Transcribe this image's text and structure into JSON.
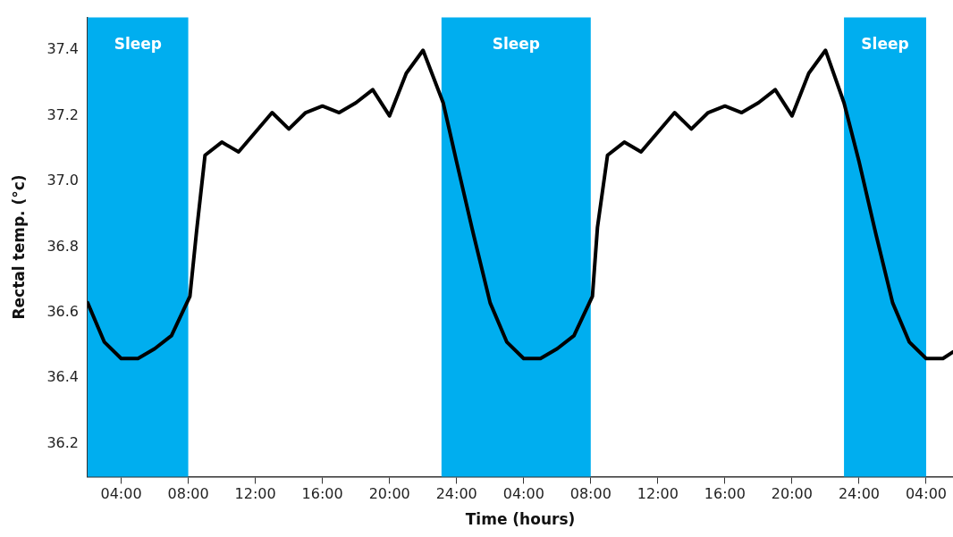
{
  "chart_data": {
    "type": "line",
    "xlabel": "Time (hours)",
    "ylabel": "Rectal temp. (°c)",
    "xlim": [
      "--01-01T02:00",
      "--01-03T05:36"
    ],
    "ylim": [
      36.1,
      37.5
    ],
    "xticks": [
      {
        "value": "--01-01T04:00",
        "label": "04:00"
      },
      {
        "value": "--01-01T08:00",
        "label": "08:00"
      },
      {
        "value": "--01-01T12:00",
        "label": "12:00"
      },
      {
        "value": "--01-01T16:00",
        "label": "16:00"
      },
      {
        "value": "--01-01T20:00",
        "label": "20:00"
      },
      {
        "value": "--01-02T00:00",
        "label": "24:00"
      },
      {
        "value": "--01-02T04:00",
        "label": "04:00"
      },
      {
        "value": "--01-02T08:00",
        "label": "08:00"
      },
      {
        "value": "--01-02T12:00",
        "label": "12:00"
      },
      {
        "value": "--01-02T16:00",
        "label": "16:00"
      },
      {
        "value": "--01-02T20:00",
        "label": "20:00"
      },
      {
        "value": "--01-03T00:00",
        "label": "24:00"
      },
      {
        "value": "--01-03T04:00",
        "label": "04:00"
      }
    ],
    "yticks": [
      36.2,
      36.4,
      36.6,
      36.8,
      {
        "value": 37,
        "label": "37.0"
      },
      37.2,
      37.4
    ],
    "grid": false,
    "legend": false,
    "marker": "none",
    "line_style": "solid",
    "bands": [
      {
        "axis": "x",
        "from": "--01-01T02:00",
        "to": "--01-01T08:00",
        "label": "Sleep",
        "color": "#00aeef"
      },
      {
        "axis": "x",
        "from": "--01-01T23:06",
        "to": "--01-02T08:00",
        "label": "Sleep",
        "color": "#00aeef"
      },
      {
        "axis": "x",
        "from": "--01-02T23:06",
        "to": "--01-03T04:00",
        "label": "Sleep",
        "color": "#00aeef"
      }
    ],
    "series": [
      {
        "color": "#000000",
        "x": [
          "--01-01T02:00",
          "--01-01T03:00",
          "--01-01T04:00",
          "--01-01T05:00",
          "--01-01T06:00",
          "--01-01T07:00",
          "--01-01T08:06",
          "--01-01T08:30",
          "--01-01T09:00",
          "--01-01T10:00",
          "--01-01T11:00",
          "--01-01T12:00",
          "--01-01T13:00",
          "--01-01T14:00",
          "--01-01T15:00",
          "--01-01T16:00",
          "--01-01T17:00",
          "--01-01T18:00",
          "--01-01T19:00",
          "--01-01T20:00",
          "--01-01T21:00",
          "--01-01T22:00",
          "--01-01T23:12",
          "--01-02T00:00",
          "--01-02T01:00",
          "--01-02T02:00",
          "--01-02T03:00",
          "--01-02T04:00",
          "--01-02T05:00",
          "--01-02T06:00",
          "--01-02T07:00",
          "--01-02T08:06",
          "--01-02T08:24",
          "--01-02T09:00",
          "--01-02T10:00",
          "--01-02T11:00",
          "--01-02T12:00",
          "--01-02T13:00",
          "--01-02T14:00",
          "--01-02T15:00",
          "--01-02T16:00",
          "--01-02T17:00",
          "--01-02T18:00",
          "--01-02T19:00",
          "--01-02T20:00",
          "--01-02T21:00",
          "--01-02T22:00",
          "--01-02T23:06",
          "--01-03T00:00",
          "--01-03T01:00",
          "--01-03T02:00",
          "--01-03T03:00",
          "--01-03T04:00",
          "--01-03T05:00",
          "--01-03T05:36"
        ],
        "values": [
          36.63,
          36.51,
          36.46,
          36.46,
          36.49,
          36.53,
          36.65,
          36.85,
          37.08,
          37.12,
          37.09,
          37.15,
          37.21,
          37.16,
          37.21,
          37.23,
          37.21,
          37.24,
          37.28,
          37.2,
          37.33,
          37.4,
          37.24,
          37.06,
          36.84,
          36.63,
          36.51,
          36.46,
          36.46,
          36.49,
          36.53,
          36.65,
          36.86,
          37.08,
          37.12,
          37.09,
          37.15,
          37.21,
          37.16,
          37.21,
          37.23,
          37.21,
          37.24,
          37.28,
          37.2,
          37.33,
          37.4,
          37.24,
          37.06,
          36.84,
          36.63,
          36.51,
          36.46,
          36.46,
          36.48
        ]
      }
    ]
  }
}
